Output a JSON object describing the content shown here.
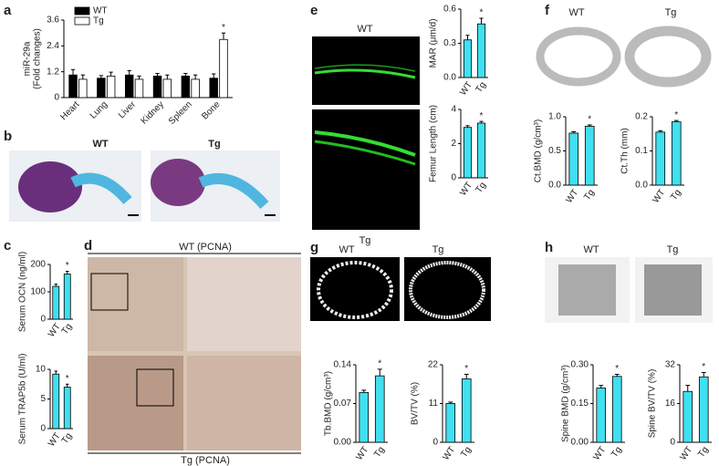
{
  "panel_letters": [
    "a",
    "b",
    "c",
    "d",
    "e",
    "f",
    "g",
    "h"
  ],
  "image_labels": [
    "WT",
    "Tg",
    "WT (PCNA)",
    "Tg (PCNA)",
    "WT",
    "Tg",
    "WT",
    "Tg",
    "WT",
    "Tg",
    "WT",
    "Tg"
  ],
  "chart_data": [
    {
      "type": "bar",
      "y_label": [
        "miR-29a",
        "(Fold changes)"
      ],
      "categories": [
        "Heart",
        "Lung",
        "Liver",
        "Kidney",
        "Spleen",
        "Bone"
      ],
      "series": [
        {
          "name": "WT",
          "color": "#000000",
          "values": [
            1.05,
            0.9,
            1.05,
            1.0,
            1.0,
            0.9
          ],
          "errors": [
            0.25,
            0.12,
            0.2,
            0.12,
            0.12,
            0.2
          ]
        },
        {
          "name": "Tg",
          "color": "#ffffff",
          "values": [
            0.85,
            1.0,
            0.85,
            0.85,
            0.85,
            2.7
          ],
          "errors": [
            0.2,
            0.18,
            0.15,
            0.2,
            0.2,
            0.3
          ]
        }
      ],
      "annotations": [
        {
          "text": "*",
          "series": 1,
          "category": 5
        }
      ],
      "ylim": [
        0,
        3.6
      ],
      "yticks": [
        0,
        1.2,
        2.4,
        3.6
      ],
      "legend": "top-left"
    },
    {
      "type": "bar",
      "y_label": "Serum OCN (ng/ml)",
      "categories": [
        "WT",
        "Tg"
      ],
      "values": [
        120,
        165
      ],
      "errors": [
        8,
        10
      ],
      "color": "#40e0f0",
      "annotations": [
        {
          "text": "*",
          "category": 1
        }
      ],
      "ylim": [
        0,
        200
      ],
      "yticks": [
        0,
        100,
        200
      ]
    },
    {
      "type": "bar",
      "y_label": "Serum TRAP5b (U/ml)",
      "categories": [
        "WT",
        "Tg"
      ],
      "values": [
        9.2,
        7.0
      ],
      "errors": [
        0.5,
        0.5
      ],
      "color": "#40e0f0",
      "annotations": [
        {
          "text": "*",
          "category": 1
        }
      ],
      "ylim": [
        0,
        10
      ],
      "yticks": [
        0,
        5,
        10
      ]
    },
    {
      "type": "bar",
      "y_label": "MAR (μm/d)",
      "categories": [
        "WT",
        "Tg"
      ],
      "values": [
        0.33,
        0.47
      ],
      "errors": [
        0.04,
        0.05
      ],
      "color": "#40e0f0",
      "annotations": [
        {
          "text": "*",
          "category": 1
        }
      ],
      "ylim": [
        0,
        0.6
      ],
      "yticks": [
        {
          "value": 0,
          "label": "0.0"
        },
        0.3,
        0.6
      ]
    },
    {
      "type": "bar",
      "y_label": "Femur Length (cm)",
      "categories": [
        "WT",
        "Tg"
      ],
      "values": [
        2.95,
        3.2
      ],
      "errors": [
        0.1,
        0.1
      ],
      "color": "#40e0f0",
      "annotations": [
        {
          "text": "*",
          "category": 1
        }
      ],
      "ylim": [
        0,
        4
      ],
      "yticks": [
        0,
        2,
        4
      ]
    },
    {
      "type": "bar",
      "y_label": "Ct.BMD (g/cm³)",
      "categories": [
        "WT",
        "Tg"
      ],
      "values": [
        0.76,
        0.86
      ],
      "errors": [
        0.02,
        0.02
      ],
      "color": "#40e0f0",
      "annotations": [
        {
          "text": "*",
          "category": 1
        }
      ],
      "ylim": [
        0,
        1.0
      ],
      "yticks": [
        {
          "value": 0,
          "label": "0.0"
        },
        0.5,
        {
          "value": 1,
          "label": "1.0"
        }
      ]
    },
    {
      "type": "bar",
      "y_label": "Ct.Th (mm)",
      "categories": [
        "WT",
        "Tg"
      ],
      "values": [
        0.155,
        0.185
      ],
      "errors": [
        0.004,
        0.004
      ],
      "color": "#40e0f0",
      "annotations": [
        {
          "text": "*",
          "category": 1
        }
      ],
      "ylim": [
        0,
        0.2
      ],
      "yticks": [
        {
          "value": 0,
          "label": "0.0"
        },
        0.1,
        0.2
      ]
    },
    {
      "type": "bar",
      "y_label": "Tb.BMD (g/cm³)",
      "categories": [
        "WT",
        "Tg"
      ],
      "values": [
        0.09,
        0.12
      ],
      "errors": [
        0.004,
        0.012
      ],
      "color": "#40e0f0",
      "annotations": [
        {
          "text": "*",
          "category": 1
        }
      ],
      "ylim": [
        0,
        0.14
      ],
      "yticks": [
        {
          "value": 0,
          "label": "0.00"
        },
        0.07,
        0.14
      ]
    },
    {
      "type": "bar",
      "y_label": "BV/TV (%)",
      "categories": [
        "WT",
        "Tg"
      ],
      "values": [
        11,
        18
      ],
      "errors": [
        0.4,
        1.3
      ],
      "color": "#40e0f0",
      "annotations": [
        {
          "text": "*",
          "category": 1
        }
      ],
      "ylim": [
        0,
        22
      ],
      "yticks": [
        0,
        11,
        22
      ]
    },
    {
      "type": "bar",
      "y_label": "Spine BMD (g/cm³)",
      "categories": [
        "WT",
        "Tg"
      ],
      "values": [
        0.21,
        0.255
      ],
      "errors": [
        0.01,
        0.008
      ],
      "color": "#40e0f0",
      "annotations": [
        {
          "text": "*",
          "category": 1
        }
      ],
      "ylim": [
        0,
        0.3
      ],
      "yticks": [
        {
          "value": 0,
          "label": "0.00"
        },
        0.15,
        {
          "value": 0.3,
          "label": "0.30"
        }
      ]
    },
    {
      "type": "bar",
      "y_label": "Spine BV/TV (%)",
      "categories": [
        "WT",
        "Tg"
      ],
      "values": [
        21,
        27
      ],
      "errors": [
        2.5,
        1.8
      ],
      "color": "#40e0f0",
      "annotations": [
        {
          "text": "*",
          "category": 1
        }
      ],
      "ylim": [
        0,
        32
      ],
      "yticks": [
        0,
        16,
        32
      ]
    }
  ]
}
